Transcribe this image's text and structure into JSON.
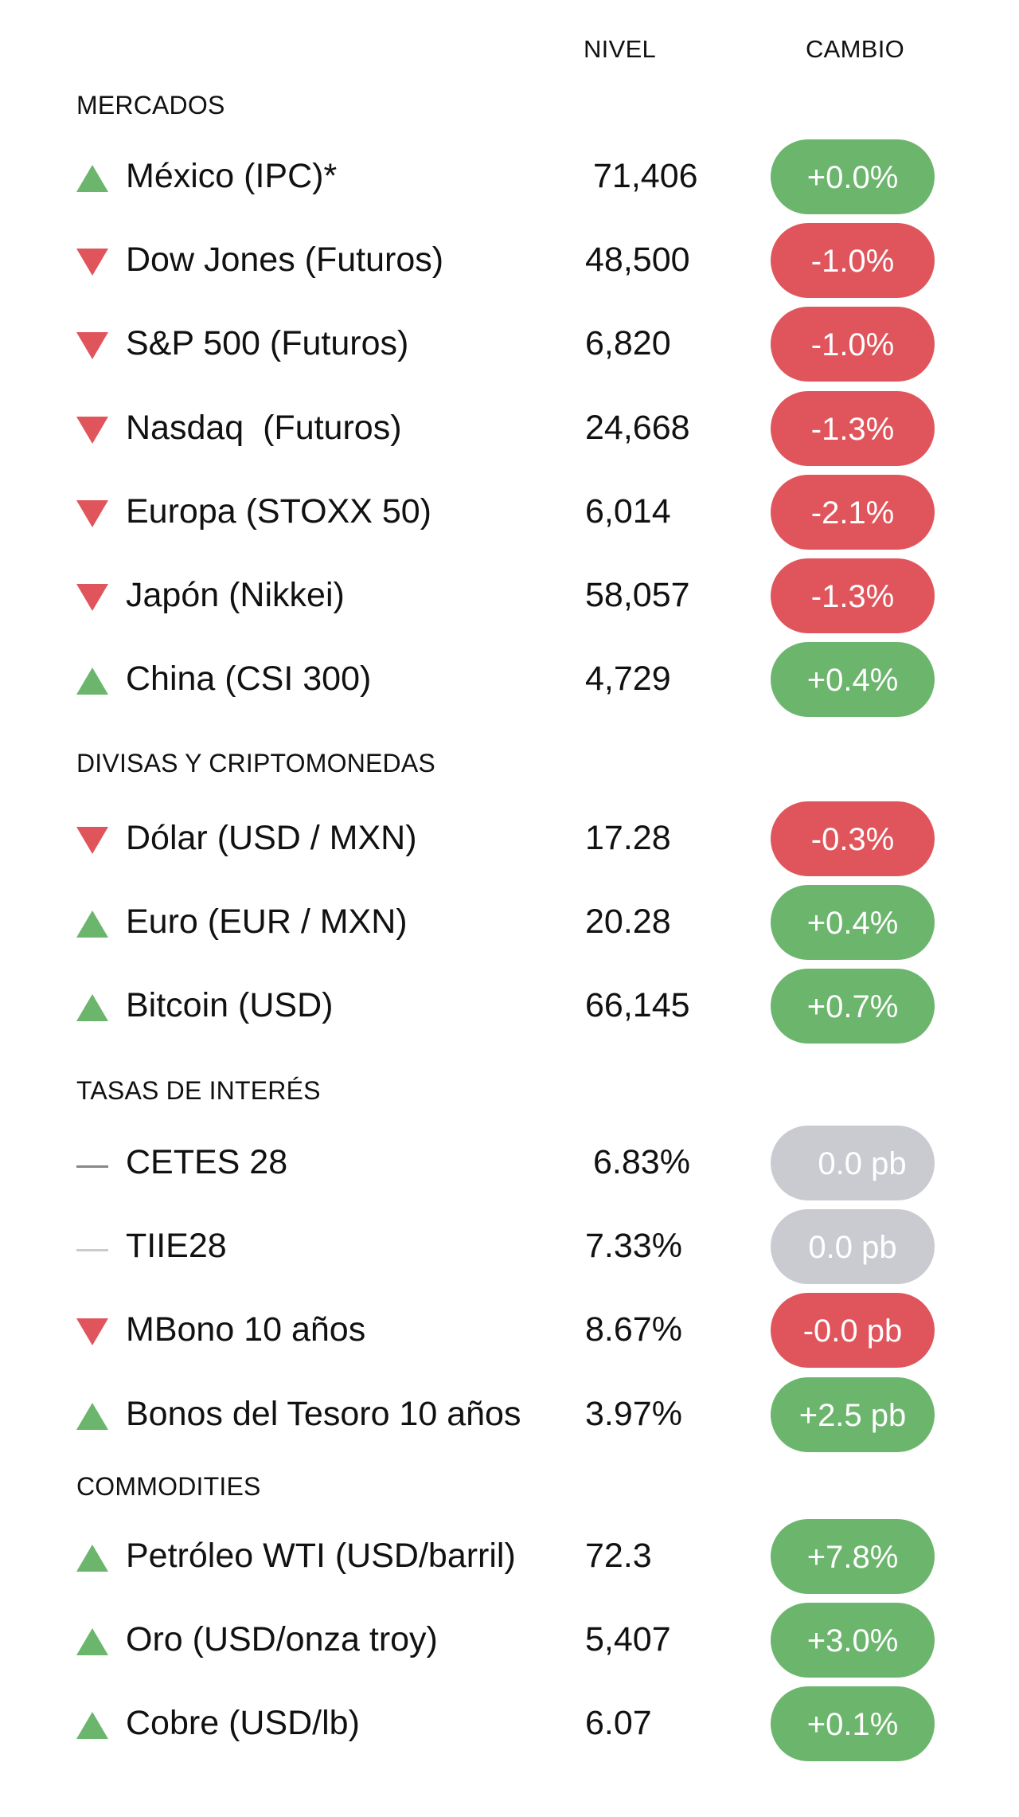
{
  "header": {
    "nivel": "NIVEL",
    "cambio": "CAMBIO"
  },
  "colors": {
    "up": "#6cb56d",
    "down": "#e0555c",
    "flat": "#c9cbd1"
  },
  "sections": [
    {
      "title": "MERCADOS",
      "rows": [
        {
          "icon": "triangle-up-icon",
          "name": "México (IPC)*",
          "level": "71,406",
          "change": "+0.0%",
          "trend": "up"
        },
        {
          "icon": "triangle-down-icon",
          "name": "Dow Jones (Futuros)",
          "level": "48,500",
          "change": "-1.0%",
          "trend": "down"
        },
        {
          "icon": "triangle-down-icon",
          "name": "S&P 500 (Futuros)",
          "level": "6,820",
          "change": "-1.0%",
          "trend": "down"
        },
        {
          "icon": "triangle-down-icon",
          "name": "Nasdaq  (Futuros)",
          "level": "24,668",
          "change": "-1.3%",
          "trend": "down"
        },
        {
          "icon": "triangle-down-icon",
          "name": "Europa (STOXX 50)",
          "level": "6,014",
          "change": "-2.1%",
          "trend": "down"
        },
        {
          "icon": "triangle-down-icon",
          "name": "Japón (Nikkei)",
          "level": "58,057",
          "change": "-1.3%",
          "trend": "down"
        },
        {
          "icon": "triangle-up-icon",
          "name": "China (CSI 300)",
          "level": "4,729",
          "change": "+0.4%",
          "trend": "up"
        }
      ]
    },
    {
      "title": "DIVISAS Y CRIPTOMONEDAS",
      "rows": [
        {
          "icon": "triangle-down-icon",
          "name": "Dólar (USD / MXN)",
          "level": "17.28",
          "change": "-0.3%",
          "trend": "down"
        },
        {
          "icon": "triangle-up-icon",
          "name": "Euro (EUR / MXN)",
          "level": "20.28",
          "change": "+0.4%",
          "trend": "up"
        },
        {
          "icon": "triangle-up-icon",
          "name": "Bitcoin (USD)",
          "level": "66,145",
          "change": "+0.7%",
          "trend": "up"
        }
      ]
    },
    {
      "title": "TASAS DE INTERÉS",
      "rows": [
        {
          "icon": "dash-icon",
          "name": "CETES 28",
          "level": "6.83%",
          "change": "0.0 pb",
          "trend": "flat"
        },
        {
          "icon": "dash-icon",
          "name": "TIIE28",
          "level": "7.33%",
          "change": "0.0 pb",
          "trend": "flat"
        },
        {
          "icon": "triangle-down-icon",
          "name": "MBono 10 años",
          "level": "8.67%",
          "change": "-0.0 pb",
          "trend": "down"
        },
        {
          "icon": "triangle-up-icon",
          "name": "Bonos del Tesoro 10 años",
          "level": "3.97%",
          "change": "+2.5 pb",
          "trend": "up"
        }
      ]
    },
    {
      "title": "COMMODITIES",
      "rows": [
        {
          "icon": "triangle-up-icon",
          "name": "Petróleo WTI (USD/barril)",
          "level": "72.3",
          "change": "+7.8%",
          "trend": "up"
        },
        {
          "icon": "triangle-up-icon",
          "name": "Oro (USD/onza troy)",
          "level": "5,407",
          "change": "+3.0%",
          "trend": "up"
        },
        {
          "icon": "triangle-up-icon",
          "name": "Cobre (USD/lb)",
          "level": "6.07",
          "change": "+0.1%",
          "trend": "up"
        }
      ]
    }
  ]
}
